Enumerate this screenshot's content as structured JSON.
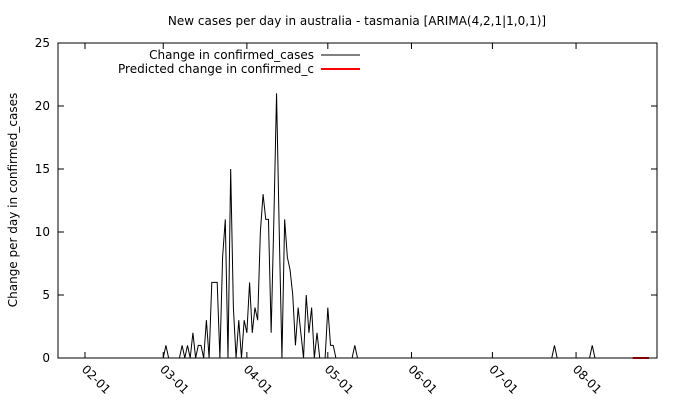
{
  "chart_data": {
    "type": "line",
    "title": "New cases per day in australia - tasmania [ARIMA(4,2,1|1,0,1)]",
    "xlabel": "",
    "ylabel": "Change per day in confirmed_cases",
    "ylim": [
      0,
      25
    ],
    "yticks": [
      0,
      5,
      10,
      15,
      20,
      25
    ],
    "xlim": [
      "2020-01-22",
      "2020-08-31"
    ],
    "xticks": [
      {
        "date": "2020-02-01",
        "label": "02-01"
      },
      {
        "date": "2020-03-01",
        "label": "03-01"
      },
      {
        "date": "2020-04-01",
        "label": "04-01"
      },
      {
        "date": "2020-05-01",
        "label": "05-01"
      },
      {
        "date": "2020-06-01",
        "label": "06-01"
      },
      {
        "date": "2020-07-01",
        "label": "07-01"
      },
      {
        "date": "2020-08-01",
        "label": "08-01"
      }
    ],
    "grid": false,
    "legend_position": "top-left",
    "series": [
      {
        "name": "Change in confirmed_cases",
        "color": "#000000",
        "points": [
          [
            "2020-01-22",
            0
          ],
          [
            "2020-03-01",
            0
          ],
          [
            "2020-03-02",
            1
          ],
          [
            "2020-03-03",
            0
          ],
          [
            "2020-03-07",
            0
          ],
          [
            "2020-03-08",
            1
          ],
          [
            "2020-03-09",
            0
          ],
          [
            "2020-03-10",
            1
          ],
          [
            "2020-03-11",
            0
          ],
          [
            "2020-03-12",
            2
          ],
          [
            "2020-03-13",
            0
          ],
          [
            "2020-03-14",
            1
          ],
          [
            "2020-03-15",
            1
          ],
          [
            "2020-03-16",
            0
          ],
          [
            "2020-03-17",
            3
          ],
          [
            "2020-03-18",
            0
          ],
          [
            "2020-03-19",
            6
          ],
          [
            "2020-03-20",
            6
          ],
          [
            "2020-03-21",
            6
          ],
          [
            "2020-03-22",
            0
          ],
          [
            "2020-03-23",
            8
          ],
          [
            "2020-03-24",
            11
          ],
          [
            "2020-03-25",
            0
          ],
          [
            "2020-03-26",
            15
          ],
          [
            "2020-03-27",
            4
          ],
          [
            "2020-03-28",
            0
          ],
          [
            "2020-03-29",
            3
          ],
          [
            "2020-03-30",
            0
          ],
          [
            "2020-03-31",
            3
          ],
          [
            "2020-04-01",
            2
          ],
          [
            "2020-04-02",
            6
          ],
          [
            "2020-04-03",
            2
          ],
          [
            "2020-04-04",
            4
          ],
          [
            "2020-04-05",
            3
          ],
          [
            "2020-04-06",
            10
          ],
          [
            "2020-04-07",
            13
          ],
          [
            "2020-04-08",
            11
          ],
          [
            "2020-04-09",
            11
          ],
          [
            "2020-04-10",
            2
          ],
          [
            "2020-04-11",
            11
          ],
          [
            "2020-04-12",
            21
          ],
          [
            "2020-04-13",
            10
          ],
          [
            "2020-04-14",
            0
          ],
          [
            "2020-04-15",
            11
          ],
          [
            "2020-04-16",
            8
          ],
          [
            "2020-04-17",
            7
          ],
          [
            "2020-04-18",
            5
          ],
          [
            "2020-04-19",
            1
          ],
          [
            "2020-04-20",
            4
          ],
          [
            "2020-04-21",
            2
          ],
          [
            "2020-04-22",
            0
          ],
          [
            "2020-04-23",
            5
          ],
          [
            "2020-04-24",
            2
          ],
          [
            "2020-04-25",
            4
          ],
          [
            "2020-04-26",
            0
          ],
          [
            "2020-04-27",
            2
          ],
          [
            "2020-04-28",
            0
          ],
          [
            "2020-04-30",
            0
          ],
          [
            "2020-05-01",
            4
          ],
          [
            "2020-05-02",
            1
          ],
          [
            "2020-05-03",
            1
          ],
          [
            "2020-05-04",
            0
          ],
          [
            "2020-05-10",
            0
          ],
          [
            "2020-05-11",
            1
          ],
          [
            "2020-05-12",
            0
          ],
          [
            "2020-07-23",
            0
          ],
          [
            "2020-07-24",
            1
          ],
          [
            "2020-07-25",
            0
          ],
          [
            "2020-08-06",
            0
          ],
          [
            "2020-08-07",
            1
          ],
          [
            "2020-08-08",
            0
          ],
          [
            "2020-08-21",
            0
          ]
        ]
      },
      {
        "name": "Predicted change in confirmed_c",
        "color": "#ff0000",
        "points": [
          [
            "2020-08-22",
            0
          ],
          [
            "2020-08-23",
            0
          ],
          [
            "2020-08-24",
            0
          ],
          [
            "2020-08-25",
            0
          ],
          [
            "2020-08-26",
            0
          ],
          [
            "2020-08-27",
            0
          ],
          [
            "2020-08-28",
            0
          ]
        ]
      }
    ]
  }
}
